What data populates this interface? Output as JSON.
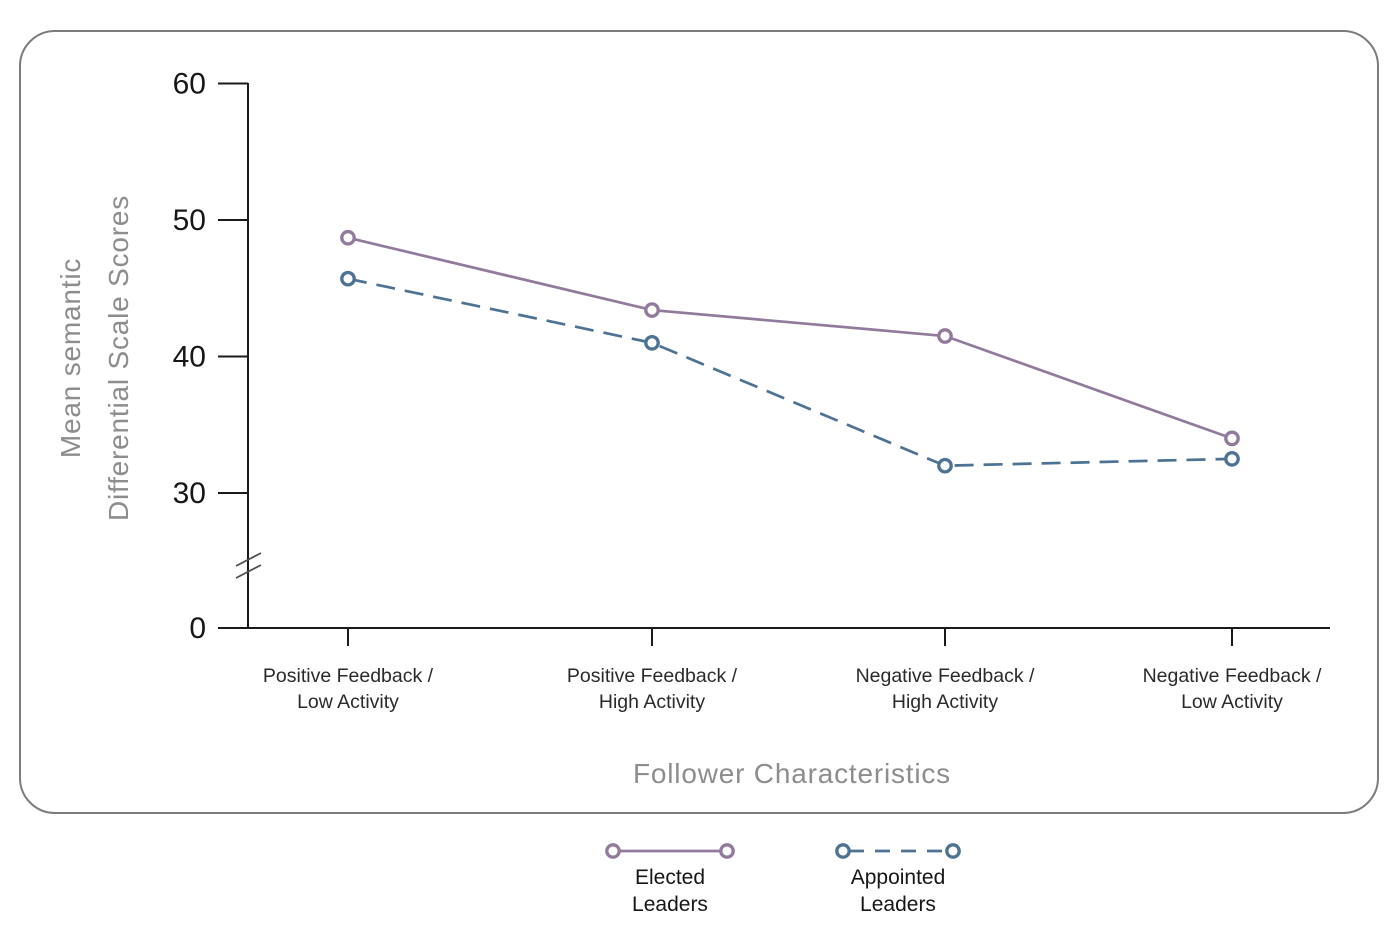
{
  "figure": {
    "y_axis_title_line1": "Mean semantic",
    "y_axis_title_line2": "Differential Scale Scores",
    "x_axis_title": "Follower Characteristics",
    "panel_border_color": "#7c7c7c",
    "axis_color": "#1a1a1a"
  },
  "legend": {
    "items": [
      {
        "label_line1": "Elected",
        "label_line2": "Leaders",
        "color": "#917a9b",
        "line_style": "solid"
      },
      {
        "label_line1": "Appointed",
        "label_line2": "Leaders",
        "color": "#4d7294",
        "line_style": "dashed"
      }
    ]
  },
  "chart_data": {
    "type": "line",
    "title": "",
    "xlabel": "Follower Characteristics",
    "ylabel": "Mean semantic Differential Scale Scores",
    "categories": [
      "Positive Feedback / Low Activity",
      "Positive Feedback / High Activity",
      "Negative Feedback / High Activity",
      "Negative Feedback / Low Activity"
    ],
    "categories_lines": [
      [
        "Positive Feedback /",
        "Low Activity"
      ],
      [
        "Positive Feedback /",
        "High Activity"
      ],
      [
        "Negative Feedback /",
        "High Activity"
      ],
      [
        "Negative Feedback /",
        "Low Activity"
      ]
    ],
    "series": [
      {
        "name": "Elected Leaders",
        "values": [
          48.7,
          43.4,
          41.5,
          34.0
        ],
        "color": "#917a9b",
        "line_style": "solid"
      },
      {
        "name": "Appointed Leaders",
        "values": [
          45.7,
          41.0,
          32.0,
          32.5
        ],
        "color": "#4d7294",
        "line_style": "dashed"
      }
    ],
    "y_ticks": [
      0,
      30,
      40,
      50,
      60
    ],
    "ylim": [
      0,
      60
    ],
    "axis_break": {
      "present": true,
      "between": [
        0,
        30
      ]
    },
    "grid": false,
    "marker": "open-circle",
    "legend_position": "bottom-outside"
  }
}
